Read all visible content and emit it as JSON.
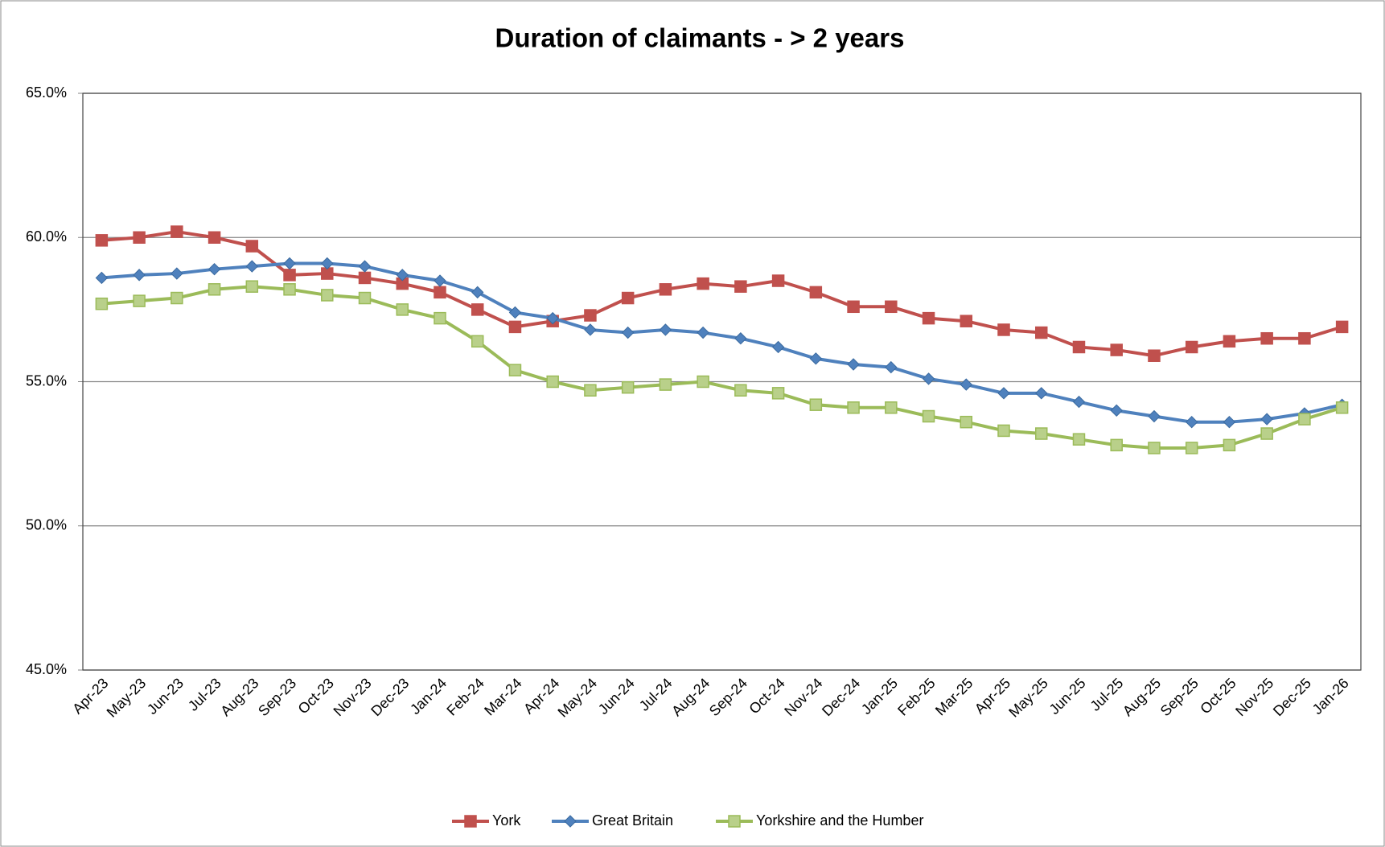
{
  "chart_data": {
    "type": "line",
    "title": "Duration of claimants - > 2 years",
    "categories": [
      "Apr-23",
      "May-23",
      "Jun-23",
      "Jul-23",
      "Aug-23",
      "Sep-23",
      "Oct-23",
      "Nov-23",
      "Dec-23",
      "Jan-24",
      "Feb-24",
      "Mar-24",
      "Apr-24",
      "May-24",
      "Jun-24",
      "Jul-24",
      "Aug-24",
      "Sep-24",
      "Oct-24",
      "Nov-24",
      "Dec-24",
      "Jan-25",
      "Feb-25",
      "Mar-25",
      "Apr-25",
      "May-25",
      "Jun-25",
      "Jul-25",
      "Aug-25",
      "Sep-25",
      "Oct-25",
      "Nov-25",
      "Dec-25",
      "Jan-26"
    ],
    "series": [
      {
        "name": "York",
        "color": "#c0504d",
        "marker": "square",
        "values": [
          59.9,
          60.0,
          60.2,
          60.0,
          59.7,
          58.7,
          58.75,
          58.6,
          58.4,
          58.1,
          57.5,
          56.9,
          57.1,
          57.3,
          57.9,
          58.2,
          58.4,
          58.3,
          58.5,
          58.1,
          57.6,
          57.6,
          57.2,
          57.1,
          56.8,
          56.7,
          56.2,
          56.1,
          55.9,
          56.2,
          56.4,
          56.5,
          56.5,
          56.9
        ]
      },
      {
        "name": "Great Britain",
        "color": "#4f81bd",
        "marker": "diamond",
        "values": [
          58.6,
          58.7,
          58.75,
          58.9,
          59.0,
          59.1,
          59.1,
          59.0,
          58.7,
          58.5,
          58.1,
          57.4,
          57.2,
          56.8,
          56.7,
          56.8,
          56.7,
          56.5,
          56.2,
          55.8,
          55.6,
          55.5,
          55.1,
          54.9,
          54.6,
          54.6,
          54.3,
          54.0,
          53.8,
          53.6,
          53.6,
          53.7,
          53.9,
          54.2
        ]
      },
      {
        "name": "Yorkshire and the Humber",
        "color": "#9bbb59",
        "marker": "square",
        "values": [
          57.7,
          57.8,
          57.9,
          58.2,
          58.3,
          58.2,
          58.0,
          57.9,
          57.5,
          57.2,
          56.4,
          55.4,
          55.0,
          54.7,
          54.8,
          54.9,
          55.0,
          54.7,
          54.6,
          54.2,
          54.1,
          54.1,
          53.8,
          53.6,
          53.3,
          53.2,
          53.0,
          52.8,
          52.7,
          52.7,
          52.8,
          53.2,
          53.7,
          54.1
        ]
      }
    ],
    "ylim": [
      45,
      65
    ],
    "yticks": [
      {
        "value": 45,
        "label": "45.0%"
      },
      {
        "value": 50,
        "label": "50.0%"
      },
      {
        "value": 55,
        "label": "55.0%"
      },
      {
        "value": 60,
        "label": "60.0%"
      },
      {
        "value": 65,
        "label": "65.0%"
      }
    ],
    "grid": true,
    "legend": "bottom"
  }
}
